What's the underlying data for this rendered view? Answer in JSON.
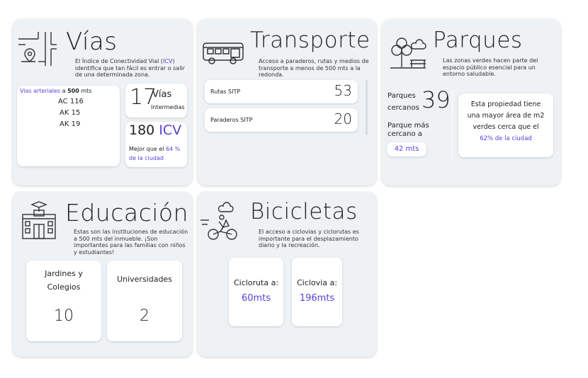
{
  "vias": {
    "title": "Vías",
    "desc_pre": "El Índice de Conectividad Vial (",
    "desc_icv": "ICV",
    "desc_post": ") identifica que tan fácil es entrar o salir de una determinada zona.",
    "arteriales_label": "Vias arteriales",
    "arteriales_a": " a ",
    "arteriales_dist": "500",
    "arteriales_unit": " mts",
    "streets": [
      "AC 116",
      "AK 15",
      "AK 19"
    ],
    "intermedias_count": "17",
    "intermedias_label1": "Vías",
    "intermedias_label2": "Intermedias",
    "icv_value": "180",
    "icv_label": "ICV",
    "mejor_pre": "Mejor que el ",
    "mejor_pct": "64 %",
    "mejor_post": "de la ciudad"
  },
  "transporte": {
    "title": "Transporte",
    "desc": "Acceso a paraderos, rutas y medios de transporte a menos de 500 mts a la redonda.",
    "rows": [
      {
        "label": "Rutas SITP",
        "value": "53"
      },
      {
        "label": "Paraderos SITP",
        "value": "20"
      }
    ]
  },
  "parques": {
    "title": "Parques",
    "desc": "Las zonas verdes hacen parte del espacio público esencial para un entorno saludable.",
    "cercanos_l1": "Parques",
    "cercanos_l2": "cercanos",
    "cercanos_count": "39",
    "mas_cercano_l1": "Parque más",
    "mas_cercano_l2": "cercano a",
    "mas_cercano_dist": "42 mts",
    "prop_l1": "Esta propiedad tiene",
    "prop_l2": "una mayor área de m2",
    "prop_l3": "verdes cerca que el",
    "prop_pct": "62% de la ciudad"
  },
  "educacion": {
    "title": "Educación",
    "desc": "Estas son las instituciones de educación a 500 mts del inmueble. ¡Son importantes para las familias con niños y estudiantes!",
    "box1_l1": "Jardines y",
    "box1_l2": "Colegios",
    "box1_value": "10",
    "box2_label": "Universidades",
    "box2_value": "2"
  },
  "bicicletas": {
    "title": "Bicicletas",
    "desc": "El acceso a ciclovias y ciclorutas es importante para el desplazamiento diario y la recreación.",
    "box1_label": "Cicloruta a:",
    "box1_value": "60mts",
    "box2_label": "Ciclovia a:",
    "box2_value": "196mts"
  },
  "colors": {
    "accent": "#5b3fd6",
    "card_bg": "#eef2f5"
  },
  "icons": [
    "map-pin-roads-icon",
    "bus-icon",
    "tree-park-icon",
    "school-building-icon",
    "cyclist-icon"
  ]
}
